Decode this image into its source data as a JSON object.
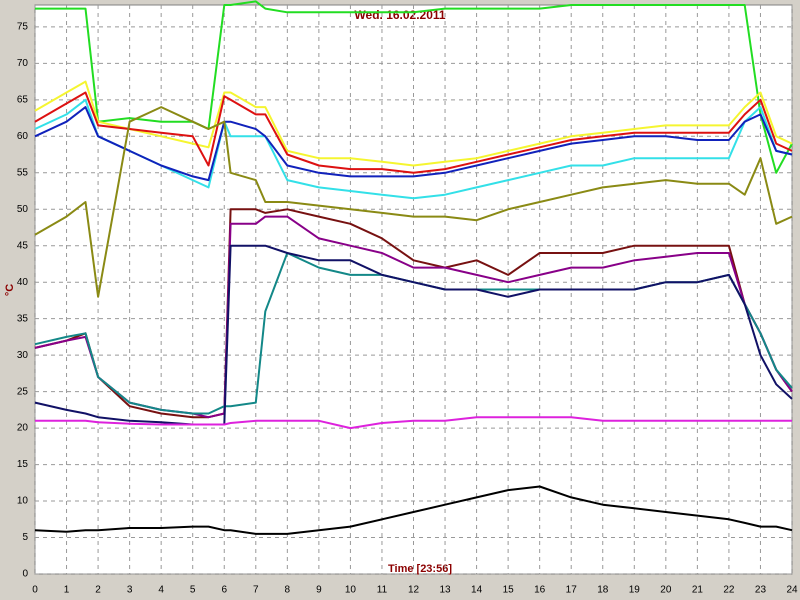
{
  "chart_data": {
    "type": "line",
    "title": "Wed. 16.02.2011",
    "x_label": "Time [23:56]",
    "y_label": "°C",
    "x": [
      0,
      1,
      1.6,
      2,
      3,
      4,
      5,
      5.5,
      6,
      6.2,
      7,
      7.3,
      8,
      9,
      10,
      11,
      12,
      13,
      14,
      15,
      16,
      17,
      18,
      19,
      20,
      21,
      22,
      22.5,
      23,
      23.5,
      24
    ],
    "xlim": [
      0,
      24
    ],
    "xticks": [
      0,
      1,
      2,
      3,
      4,
      5,
      6,
      7,
      8,
      9,
      10,
      11,
      12,
      13,
      14,
      15,
      16,
      17,
      18,
      19,
      20,
      21,
      22,
      23,
      24
    ],
    "ylim": [
      0,
      78
    ],
    "yticks": [
      0,
      5,
      10,
      15,
      20,
      25,
      30,
      35,
      40,
      45,
      50,
      55,
      60,
      65,
      70,
      75
    ],
    "grid": true,
    "series": [
      {
        "color": "#22dd22",
        "values": [
          77.5,
          77.5,
          77.5,
          62,
          62.5,
          62,
          62,
          61,
          78,
          78,
          78.5,
          77.5,
          77,
          77,
          77,
          77,
          77,
          77.5,
          77.5,
          77.5,
          77.5,
          78,
          78,
          78,
          78,
          78,
          78,
          78,
          63,
          55,
          59
        ]
      },
      {
        "color": "#f5f530",
        "values": [
          63.5,
          66,
          67.5,
          62,
          61,
          60,
          59,
          58.5,
          66,
          66,
          64,
          64,
          58,
          57,
          57,
          56.5,
          56,
          56.5,
          57,
          58,
          59,
          60,
          60.5,
          61,
          61.5,
          61.5,
          61.5,
          64,
          66,
          60,
          59
        ]
      },
      {
        "color": "#dd1111",
        "values": [
          62,
          64.5,
          66,
          61.5,
          61,
          60.5,
          60,
          56,
          65.5,
          65,
          63,
          63,
          57.5,
          56,
          55.5,
          55.5,
          55,
          55.5,
          56.5,
          57.5,
          58.5,
          59.5,
          60,
          60.5,
          60.5,
          60.5,
          60.5,
          63,
          65,
          59,
          58
        ]
      },
      {
        "color": "#33e0e8",
        "values": [
          61,
          63,
          65,
          60,
          58,
          56,
          54,
          53,
          62,
          60,
          60,
          60,
          54,
          53,
          52.5,
          52,
          51.5,
          52,
          53,
          54,
          55,
          56,
          56,
          57,
          57,
          57,
          57,
          62,
          64,
          58,
          57.5
        ]
      },
      {
        "color": "#1122bb",
        "values": [
          60,
          62,
          64,
          60,
          58,
          56,
          54.5,
          54,
          62,
          62,
          61,
          60,
          56,
          55,
          54.5,
          54.5,
          54.5,
          55,
          56,
          57,
          58,
          59,
          59.5,
          60,
          60,
          59.5,
          59.5,
          62,
          63,
          58,
          57.5
        ]
      },
      {
        "color": "#8a8a14",
        "values": [
          46.5,
          49,
          51,
          38,
          62,
          64,
          62,
          61,
          62,
          55,
          54,
          51,
          51,
          50.5,
          50,
          49.5,
          49,
          49,
          48.5,
          50,
          51,
          52,
          53,
          53.5,
          54,
          53.5,
          53.5,
          52,
          57,
          48,
          49
        ]
      },
      {
        "color": "#771111",
        "values": [
          31,
          32,
          33,
          27,
          23,
          22,
          21.5,
          21.5,
          22,
          50,
          50,
          49.5,
          50,
          49,
          48,
          46,
          43,
          42,
          43,
          41,
          44,
          44,
          44,
          45,
          45,
          45,
          45,
          37,
          33,
          28,
          25
        ]
      },
      {
        "color": "#880088",
        "values": [
          31,
          32,
          32.5,
          27,
          23.5,
          22.5,
          22,
          21.5,
          22,
          48,
          48,
          49,
          49,
          46,
          45,
          44,
          42,
          42,
          41,
          40,
          41,
          42,
          42,
          43,
          43.5,
          44,
          44,
          37,
          33,
          28,
          25
        ]
      },
      {
        "color": "#138888",
        "values": [
          31.5,
          32.5,
          33,
          27,
          23.5,
          22.5,
          22,
          22,
          23,
          23,
          23.5,
          36,
          44,
          42,
          41,
          41,
          40,
          39,
          39,
          39,
          39,
          39,
          39,
          39,
          40,
          40,
          41,
          37,
          33,
          28,
          25.5
        ]
      },
      {
        "color": "#111166",
        "values": [
          23.5,
          22.5,
          22,
          21.5,
          21,
          20.8,
          20.5,
          20.5,
          20.5,
          45,
          45,
          45,
          44,
          43,
          43,
          41,
          40,
          39,
          39,
          38,
          39,
          39,
          39,
          39,
          40,
          40,
          41,
          37,
          30,
          26,
          24
        ]
      },
      {
        "color": "#dd22dd",
        "values": [
          21,
          21,
          21,
          20.8,
          20.6,
          20.5,
          20.5,
          20.5,
          20.5,
          20.7,
          21,
          21,
          21,
          21,
          20,
          20.7,
          21,
          21,
          21.5,
          21.5,
          21.5,
          21.5,
          21,
          21,
          21,
          21,
          21,
          21,
          21,
          21,
          21
        ]
      },
      {
        "color": "#000000",
        "values": [
          6,
          5.8,
          6,
          6,
          6.3,
          6.3,
          6.5,
          6.5,
          6,
          6,
          5.5,
          5.5,
          5.5,
          6,
          6.5,
          7.5,
          8.5,
          9.5,
          10.5,
          11.5,
          12,
          10.5,
          9.5,
          9,
          8.5,
          8,
          7.5,
          7,
          6.5,
          6.5,
          6
        ]
      }
    ]
  }
}
